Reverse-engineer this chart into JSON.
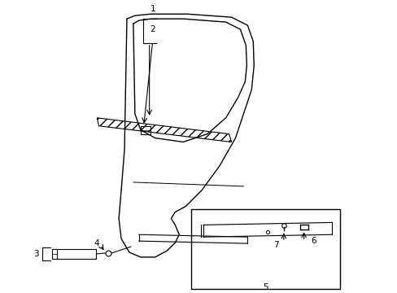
{
  "background_color": "#ffffff",
  "line_color": "#000000",
  "figsize": [
    4.89,
    3.6
  ],
  "dpi": 100,
  "label_fs": 7.5
}
